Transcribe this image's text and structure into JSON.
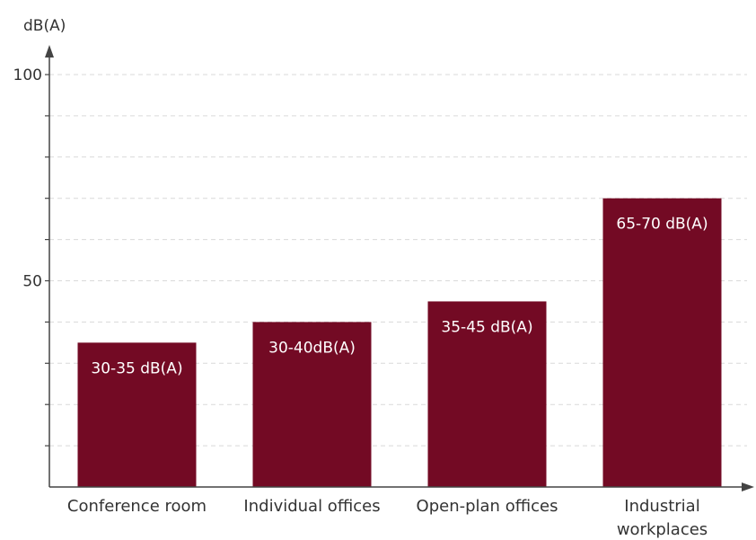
{
  "chart_data": {
    "type": "bar",
    "ylabel": "dB(A)",
    "ylim": [
      0,
      100
    ],
    "yticks": [
      50,
      100
    ],
    "grid": true,
    "categories": [
      [
        "Conference room"
      ],
      [
        "Individual offices"
      ],
      [
        "Open-plan offices"
      ],
      [
        "Industrial",
        "workplaces"
      ]
    ],
    "values": [
      35,
      40,
      45,
      70
    ],
    "labels": [
      "30-35 dB(A)",
      "30-40dB(A)",
      "35-45 dB(A)",
      "65-70 dB(A)"
    ],
    "bar_color": "#730a24",
    "axis_color": "#444444",
    "grid_color": "#d9d9d9"
  }
}
